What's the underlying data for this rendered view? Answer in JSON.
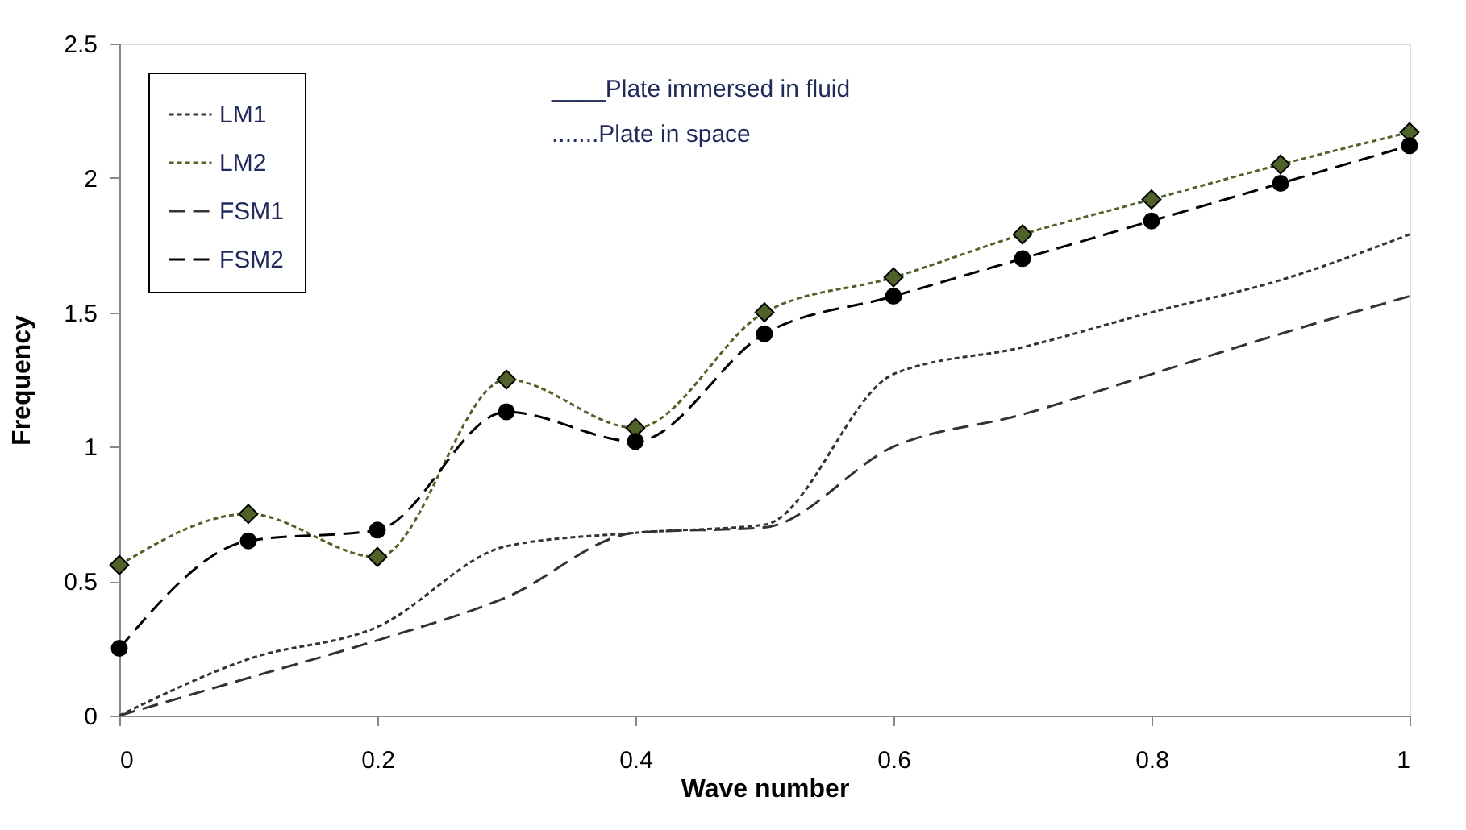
{
  "chart_data": {
    "type": "line",
    "xlabel": "Wave number",
    "ylabel": "Frequency",
    "x": [
      0,
      0.1,
      0.2,
      0.3,
      0.4,
      0.5,
      0.6,
      0.7,
      0.8,
      0.9,
      1
    ],
    "series": [
      {
        "name": "LM1",
        "color": "#333333",
        "line_style": "dotted",
        "marker": "none",
        "values": [
          0,
          0.21,
          0.33,
          0.63,
          0.68,
          0.71,
          1.27,
          1.37,
          1.5,
          1.62,
          1.79
        ]
      },
      {
        "name": "LM2",
        "color": "#4f6228",
        "line_style": "dotted",
        "marker": "diamond",
        "values": [
          0.56,
          0.75,
          0.59,
          1.25,
          1.07,
          1.5,
          1.63,
          1.79,
          1.92,
          2.05,
          2.17
        ]
      },
      {
        "name": "FSM1",
        "color": "#333333",
        "line_style": "dashed",
        "marker": "none",
        "values": [
          0,
          0.14,
          0.28,
          0.44,
          0.68,
          0.7,
          1.0,
          1.12,
          1.27,
          1.42,
          1.56
        ]
      },
      {
        "name": "FSM2",
        "color": "#000000",
        "line_style": "dashed",
        "marker": "circle",
        "values": [
          0.25,
          0.65,
          0.69,
          1.13,
          1.02,
          1.42,
          1.56,
          1.7,
          1.84,
          1.98,
          2.12
        ]
      }
    ],
    "annotations": [
      "____Plate immersed in fluid",
      ".......Plate in space"
    ],
    "xlim": [
      0,
      1
    ],
    "xticks": [
      0,
      0.2,
      0.4,
      0.6,
      0.8,
      1
    ],
    "ylim": [
      0,
      2.5
    ],
    "yticks": [
      0,
      0.5,
      1,
      1.5,
      2,
      2.5
    ],
    "grid": false,
    "legend": "top left"
  }
}
